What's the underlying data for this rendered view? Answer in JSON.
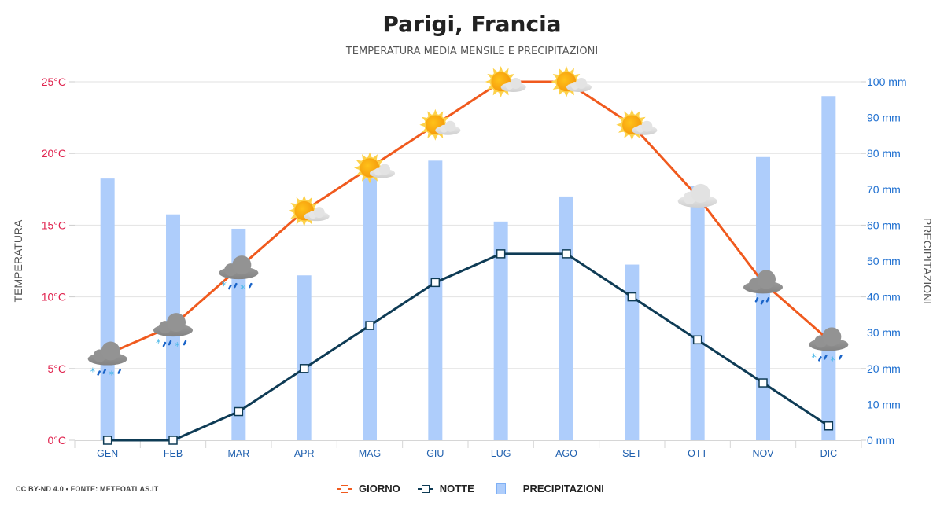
{
  "header": {
    "title": "Parigi, Francia",
    "subtitle": "TEMPERATURA MEDIA MENSILE E PRECIPITAZIONI"
  },
  "footer": {
    "credit": "CC BY-ND 4.0 • FONTE: METEOATLAS.IT"
  },
  "legend": {
    "items": [
      {
        "label": "GIORNO",
        "color": "#f05a1e",
        "type": "line"
      },
      {
        "label": "NOTTE",
        "color": "#0e3b55",
        "type": "line"
      },
      {
        "label": "PRECIPITAZIONI",
        "color": "#aecdfb",
        "type": "bar"
      }
    ]
  },
  "axes": {
    "left_title": "TEMPERATURA",
    "right_title": "PRECIPITAZIONI",
    "left_ticks": [
      "0°C",
      "5°C",
      "10°C",
      "15°C",
      "20°C",
      "25°C"
    ],
    "right_ticks": [
      "0 mm",
      "10 mm",
      "20 mm",
      "30 mm",
      "40 mm",
      "50 mm",
      "60 mm",
      "70 mm",
      "80 mm",
      "90 mm",
      "100 mm"
    ]
  },
  "colors": {
    "day_line": "#f05a1e",
    "night_line": "#0e3b55",
    "precip_bar": "#aecdfb",
    "left_axis_text": "#e0234e",
    "right_axis_text": "#1e6fd0",
    "x_axis_text": "#1e5fae",
    "grid": "#e2e2e2"
  },
  "chart_data": {
    "type": "bar+line",
    "title": "Parigi, Francia",
    "subtitle": "TEMPERATURA MEDIA MENSILE E PRECIPITAZIONI",
    "categories": [
      "GEN",
      "FEB",
      "MAR",
      "APR",
      "MAG",
      "GIU",
      "LUG",
      "AGO",
      "SET",
      "OTT",
      "NOV",
      "DIC"
    ],
    "series": [
      {
        "name": "GIORNO",
        "type": "line",
        "axis": "left",
        "unit": "°C",
        "values": [
          6,
          8,
          12,
          16,
          19,
          22,
          25,
          25,
          22,
          17,
          11,
          7
        ]
      },
      {
        "name": "NOTTE",
        "type": "line",
        "axis": "left",
        "unit": "°C",
        "values": [
          0,
          0,
          2,
          5,
          8,
          11,
          13,
          13,
          10,
          7,
          4,
          1
        ]
      },
      {
        "name": "PRECIPITAZIONI",
        "type": "bar",
        "axis": "right",
        "unit": "mm",
        "values": [
          73,
          63,
          59,
          46,
          73,
          78,
          61,
          68,
          49,
          71,
          79,
          96
        ]
      }
    ],
    "weather_icons": [
      "cloud-rain-snow",
      "cloud-rain-snow",
      "cloud-rain-snow",
      "sun-cloud",
      "sun-cloud",
      "sun-cloud",
      "sun-cloud",
      "sun-cloud",
      "sun-cloud",
      "cloud",
      "cloud-rain",
      "cloud-rain-snow"
    ],
    "ylabel_left": "TEMPERATURA",
    "ylabel_right": "PRECIPITAZIONI",
    "ylim_left": [
      0,
      25
    ],
    "ylim_right": [
      0,
      100
    ],
    "grid": true,
    "legend_position": "bottom"
  }
}
